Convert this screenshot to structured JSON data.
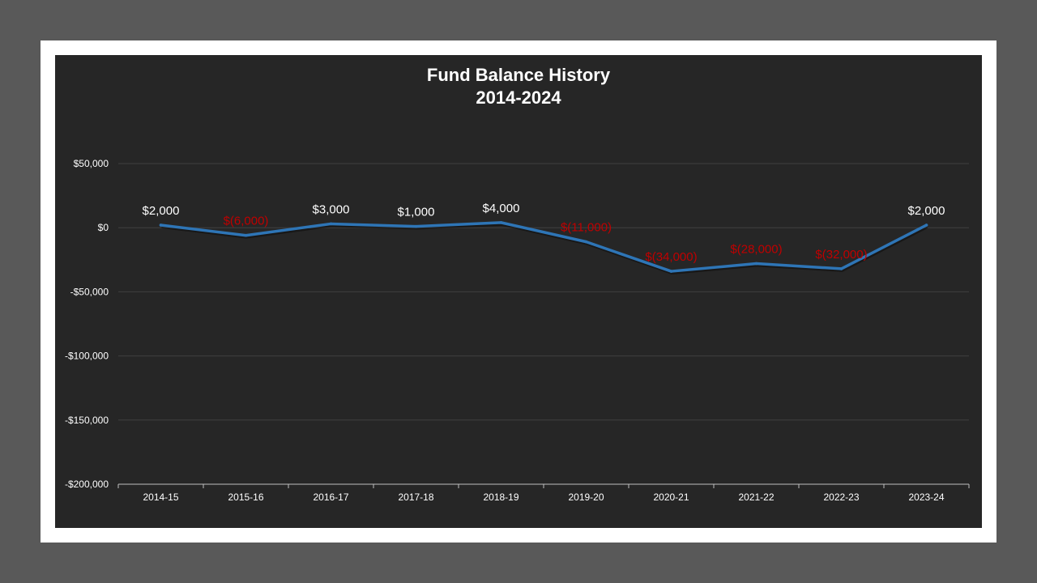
{
  "colors": {
    "page_background": "#595959",
    "frame": "#ffffff",
    "panel": "#262626",
    "line": "#2e75b6",
    "positive_label": "#ffffff",
    "negative_label": "#c00000",
    "gridline": "#404040",
    "axis": "#bfbfbf"
  },
  "chart_data": {
    "type": "line",
    "title_lines": [
      "Fund Balance History",
      "2014-2024"
    ],
    "xlabel": "",
    "ylabel": "",
    "categories": [
      "2014-15",
      "2015-16",
      "2016-17",
      "2017-18",
      "2018-19",
      "2019-20",
      "2020-21",
      "2021-22",
      "2022-23",
      "2023-24"
    ],
    "values": [
      2000,
      -6000,
      3000,
      1000,
      4000,
      -11000,
      -34000,
      -28000,
      -32000,
      2000
    ],
    "data_labels": [
      "$2,000",
      "$(6,000)",
      "$3,000",
      "$1,000",
      "$4,000",
      "$(11,000)",
      "$(34,000)",
      "$(28,000)",
      "$(32,000)",
      "$2,000"
    ],
    "ylim": [
      -200000,
      50000
    ],
    "yticks": [
      50000,
      0,
      -50000,
      -100000,
      -150000,
      -200000
    ],
    "ytick_labels": [
      "$50,000",
      "$0",
      "-$50,000",
      "-$100,000",
      "-$150,000",
      "-$200,000"
    ],
    "grid": true,
    "legend": "none"
  }
}
